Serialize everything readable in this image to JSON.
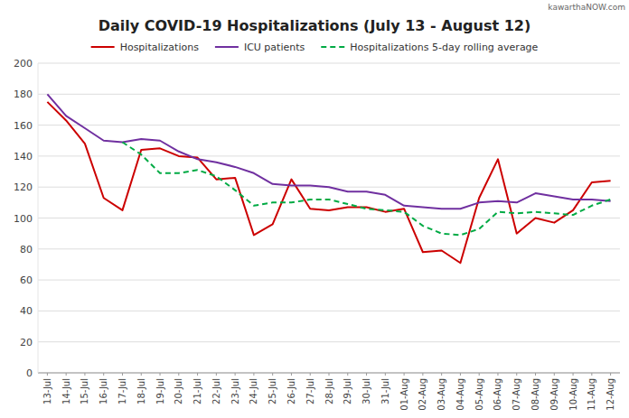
{
  "chart_data": {
    "type": "line",
    "title": "Daily COVID-19 Hospitalizations (July 13 - August 12)",
    "annotations": [
      "kawarthaNOW.com"
    ],
    "categories": [
      "13-Jul",
      "14-Jul",
      "15-Jul",
      "16-Jul",
      "17-Jul",
      "18-Jul",
      "19-Jul",
      "20-Jul",
      "21-Jul",
      "22-Jul",
      "23-Jul",
      "24-Jul",
      "25-Jul",
      "26-Jul",
      "27-Jul",
      "28-Jul",
      "29-Jul",
      "30-Jul",
      "31-Jul",
      "01-Aug",
      "02-Aug",
      "03-Aug",
      "04-Aug",
      "05-Aug",
      "06-Aug",
      "07-Aug",
      "08-Aug",
      "09-Aug",
      "10-Aug",
      "11-Aug",
      "12-Aug"
    ],
    "series": [
      {
        "name": "Hospitalizations",
        "color": "#cc0000",
        "line_style": "solid",
        "values": [
          175,
          163,
          148,
          113,
          105,
          144,
          145,
          140,
          139,
          125,
          126,
          89,
          96,
          125,
          106,
          105,
          107,
          107,
          104,
          106,
          78,
          79,
          71,
          113,
          138,
          90,
          100,
          97,
          105,
          123,
          124
        ]
      },
      {
        "name": "ICU patients",
        "color": "#7030a0",
        "line_style": "solid",
        "values": [
          180,
          166,
          158,
          150,
          149,
          151,
          150,
          143,
          138,
          136,
          133,
          129,
          122,
          121,
          121,
          120,
          117,
          117,
          115,
          108,
          107,
          106,
          106,
          110,
          111,
          110,
          116,
          114,
          112,
          112,
          111
        ]
      },
      {
        "name": "Hospitalizations 5-day rolling average",
        "color": "#00aa44",
        "line_style": "dashed",
        "values": [
          null,
          null,
          null,
          null,
          149,
          141,
          129,
          129,
          131,
          127,
          118,
          108,
          110,
          110,
          112,
          112,
          109,
          106,
          105,
          104,
          95,
          90,
          89,
          93,
          104,
          103,
          104,
          103,
          102,
          108,
          112
        ]
      }
    ],
    "ylim": [
      0,
      200
    ],
    "yticks": [
      0,
      20,
      40,
      60,
      80,
      100,
      120,
      140,
      160,
      180,
      200
    ],
    "grid": true,
    "legend": "top"
  }
}
